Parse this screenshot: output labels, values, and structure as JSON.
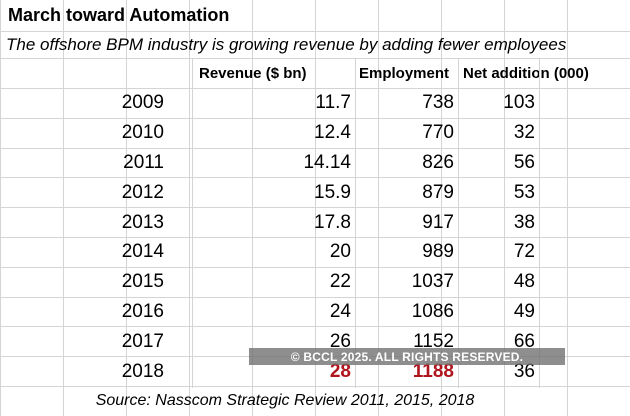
{
  "title": "March toward Automation",
  "subtitle": "The offshore BPM industry is growing revenue by adding fewer employees",
  "headers": {
    "revenue": "Revenue ($ bn)",
    "employment": "Employment",
    "net_addition": "Net addition (000)"
  },
  "rows": [
    {
      "year": "2009",
      "revenue": "11.7",
      "employment": "738",
      "net": "103"
    },
    {
      "year": "2010",
      "revenue": "12.4",
      "employment": "770",
      "net": "32"
    },
    {
      "year": "2011",
      "revenue": "14.14",
      "employment": "826",
      "net": "56"
    },
    {
      "year": "2012",
      "revenue": "15.9",
      "employment": "879",
      "net": "53"
    },
    {
      "year": "2013",
      "revenue": "17.8",
      "employment": "917",
      "net": "38"
    },
    {
      "year": "2014",
      "revenue": "20",
      "employment": "989",
      "net": "72"
    },
    {
      "year": "2015",
      "revenue": "22",
      "employment": "1037",
      "net": "48"
    },
    {
      "year": "2016",
      "revenue": "24",
      "employment": "1086",
      "net": "49"
    },
    {
      "year": "2017",
      "revenue": "26",
      "employment": "1152",
      "net": "66"
    },
    {
      "year": "2018",
      "revenue": "28",
      "employment": "1188",
      "net": "36"
    }
  ],
  "source": "Source: Nasscom Strategic Review 2011, 2015, 2018",
  "watermark": "© BCCL 2025. ALL RIGHTS RESERVED.",
  "colors": {
    "highlight": "#b0141c",
    "gridline": "#d4d4d4"
  }
}
